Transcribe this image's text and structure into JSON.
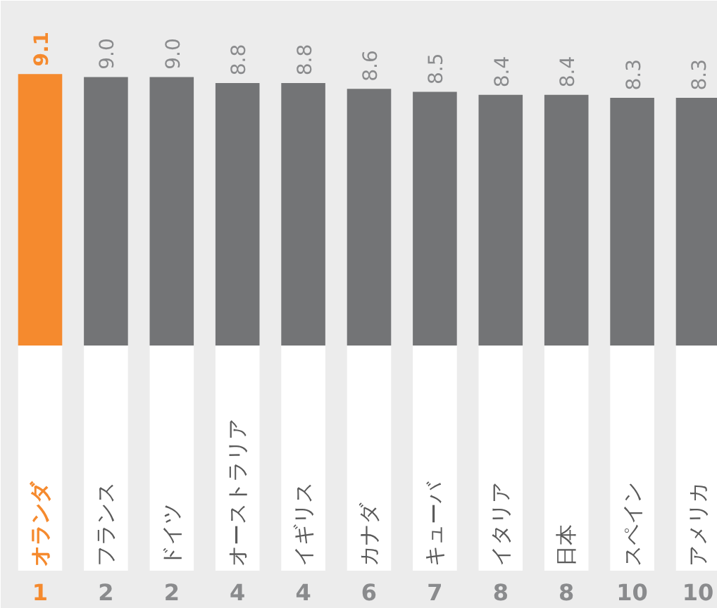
{
  "chart_data": {
    "type": "bar",
    "categories": [
      "オランダ",
      "フランス",
      "ドイツ",
      "オーストラリア",
      "イギリス",
      "カナダ",
      "キューバ",
      "イタリア",
      "日本",
      "スペイン",
      "アメリカ"
    ],
    "values": [
      9.1,
      9.0,
      9.0,
      8.8,
      8.8,
      8.6,
      8.5,
      8.4,
      8.4,
      8.3,
      8.3
    ],
    "colors": [
      "#f58a2e",
      "#737476",
      "#737476",
      "#737476",
      "#737476",
      "#737476",
      "#737476",
      "#737476",
      "#737476",
      "#737476",
      "#737476"
    ],
    "value_labels": [
      "9.1",
      "9.0",
      "9.0",
      "8.8",
      "8.8",
      "8.6",
      "8.5",
      "8.4",
      "8.4",
      "8.3",
      "8.3"
    ],
    "annotations": [
      "1",
      "2",
      "2",
      "4",
      "4",
      "6",
      "7",
      "8",
      "8",
      "10",
      "10"
    ]
  }
}
